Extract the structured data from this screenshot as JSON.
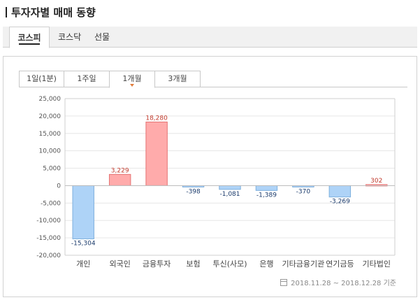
{
  "page_title": "투자자별 매매 동향",
  "market_tabs": [
    {
      "label": "코스피",
      "active": true
    },
    {
      "label": "코스닥",
      "active": false
    },
    {
      "label": "선물",
      "active": false
    }
  ],
  "period_tabs": [
    {
      "label": "1일(1분)",
      "active": false
    },
    {
      "label": "1주일",
      "active": false
    },
    {
      "label": "1개월",
      "active": true
    },
    {
      "label": "3개월",
      "active": false
    }
  ],
  "date_range": "2018.11.28 ~ 2018.12.28 기준",
  "colors": {
    "positive_fill": "#ffabab",
    "positive_stroke": "#e57373",
    "negative_fill": "#aed3f7",
    "negative_stroke": "#7fb0dd",
    "positive_label": "#c0392b",
    "negative_label": "#1a3a6b",
    "active_caret": "#e07b3a"
  },
  "chart_data": {
    "type": "bar",
    "categories": [
      "개인",
      "외국인",
      "금융투자",
      "보험",
      "투신(사모)",
      "은행",
      "기타금융기관",
      "연기금등",
      "기타법인"
    ],
    "values": [
      -15304,
      3229,
      18280,
      -398,
      -1081,
      -1389,
      -370,
      -3269,
      302
    ],
    "value_labels": [
      "-15,304",
      "3,229",
      "18,280",
      "-398",
      "-1,081",
      "-1,389",
      "-370",
      "-3,269",
      "302"
    ],
    "ylim": [
      -20000,
      25000
    ],
    "yticks": [
      25000,
      20000,
      15000,
      10000,
      5000,
      0,
      -5000,
      -10000,
      -15000,
      -20000
    ],
    "ytick_labels": [
      "25,000",
      "20,000",
      "15,000",
      "10,000",
      "5,000",
      "0",
      "-5,000",
      "-10,000",
      "-15,000",
      "-20,000"
    ],
    "xlabel": "",
    "ylabel": "",
    "title": "",
    "grid": true
  }
}
